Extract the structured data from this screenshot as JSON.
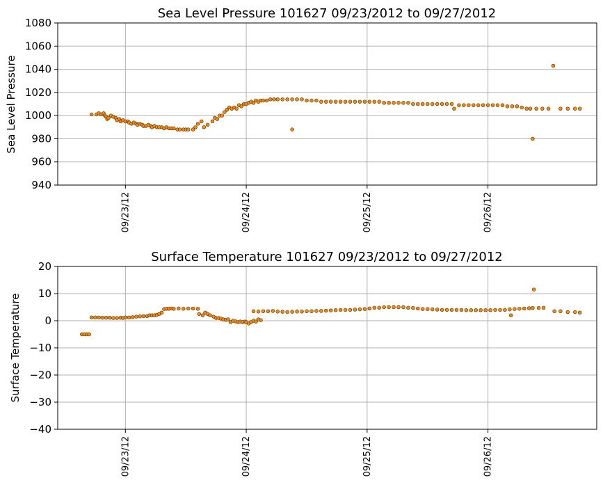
{
  "chart_data": [
    {
      "type": "scatter",
      "title": "Sea Level Pressure 101627  09/23/2012 to 09/27/2012",
      "xlabel": "",
      "ylabel": "Sea Level Pressure",
      "xlim": [
        -0.56,
        3.9
      ],
      "ylim": [
        940,
        1080
      ],
      "yticks": [
        940,
        960,
        980,
        1000,
        1020,
        1040,
        1060,
        1080
      ],
      "xticks": [
        0,
        1,
        2,
        3
      ],
      "xtick_labels": [
        "09/23/12",
        "09/24/12",
        "09/25/12",
        "09/26/12"
      ],
      "grid": true,
      "marker_color": "#ff8c00",
      "series": [
        {
          "name": "Sea Level Pressure",
          "points": [
            [
              -0.28,
              1001
            ],
            [
              -0.24,
              1001
            ],
            [
              -0.22,
              1002
            ],
            [
              -0.2,
              1001
            ],
            [
              -0.18,
              1002
            ],
            [
              -0.17,
              1000
            ],
            [
              -0.16,
              999
            ],
            [
              -0.15,
              997
            ],
            [
              -0.14,
              998
            ],
            [
              -0.12,
              1000
            ],
            [
              -0.1,
              999
            ],
            [
              -0.08,
              998
            ],
            [
              -0.07,
              996
            ],
            [
              -0.05,
              997
            ],
            [
              -0.04,
              995
            ],
            [
              -0.02,
              996
            ],
            [
              0,
              995
            ],
            [
              0.02,
              995
            ],
            [
              0.03,
              994
            ],
            [
              0.05,
              993
            ],
            [
              0.07,
              994
            ],
            [
              0.09,
              993
            ],
            [
              0.1,
              992
            ],
            [
              0.12,
              993
            ],
            [
              0.14,
              992
            ],
            [
              0.15,
              991
            ],
            [
              0.17,
              991
            ],
            [
              0.19,
              992
            ],
            [
              0.21,
              991
            ],
            [
              0.22,
              990
            ],
            [
              0.24,
              991
            ],
            [
              0.26,
              990
            ],
            [
              0.28,
              990
            ],
            [
              0.3,
              990
            ],
            [
              0.32,
              989
            ],
            [
              0.34,
              990
            ],
            [
              0.36,
              989
            ],
            [
              0.38,
              989
            ],
            [
              0.4,
              989
            ],
            [
              0.43,
              988
            ],
            [
              0.45,
              988
            ],
            [
              0.48,
              988
            ],
            [
              0.5,
              988
            ],
            [
              0.52,
              988
            ],
            [
              0.56,
              988
            ],
            [
              0.58,
              990
            ],
            [
              0.6,
              993
            ],
            [
              0.63,
              995
            ],
            [
              0.65,
              990
            ],
            [
              0.68,
              992
            ],
            [
              0.72,
              995
            ],
            [
              0.74,
              998
            ],
            [
              0.76,
              997
            ],
            [
              0.78,
              1000
            ],
            [
              0.8,
              1000
            ],
            [
              0.82,
              1003
            ],
            [
              0.84,
              1005
            ],
            [
              0.86,
              1007
            ],
            [
              0.88,
              1006
            ],
            [
              0.9,
              1007
            ],
            [
              0.92,
              1006
            ],
            [
              0.94,
              1009
            ],
            [
              0.96,
              1008
            ],
            [
              0.98,
              1010
            ],
            [
              1,
              1010
            ],
            [
              1.02,
              1011
            ],
            [
              1.04,
              1012
            ],
            [
              1.06,
              1011
            ],
            [
              1.08,
              1013
            ],
            [
              1.1,
              1012
            ],
            [
              1.12,
              1013
            ],
            [
              1.14,
              1013
            ],
            [
              1.17,
              1013
            ],
            [
              1.2,
              1014
            ],
            [
              1.23,
              1014
            ],
            [
              1.26,
              1014
            ],
            [
              1.3,
              1014
            ],
            [
              1.34,
              1014
            ],
            [
              1.38,
              1014
            ],
            [
              1.38,
              988
            ],
            [
              1.42,
              1014
            ],
            [
              1.46,
              1014
            ],
            [
              1.5,
              1013
            ],
            [
              1.54,
              1013
            ],
            [
              1.58,
              1013
            ],
            [
              1.62,
              1012
            ],
            [
              1.66,
              1012
            ],
            [
              1.7,
              1012
            ],
            [
              1.74,
              1012
            ],
            [
              1.78,
              1012
            ],
            [
              1.82,
              1012
            ],
            [
              1.86,
              1012
            ],
            [
              1.9,
              1012
            ],
            [
              1.94,
              1012
            ],
            [
              1.98,
              1012
            ],
            [
              2.02,
              1012
            ],
            [
              2.06,
              1012
            ],
            [
              2.1,
              1012
            ],
            [
              2.14,
              1011
            ],
            [
              2.18,
              1011
            ],
            [
              2.22,
              1011
            ],
            [
              2.26,
              1011
            ],
            [
              2.3,
              1011
            ],
            [
              2.34,
              1011
            ],
            [
              2.38,
              1010
            ],
            [
              2.42,
              1010
            ],
            [
              2.46,
              1010
            ],
            [
              2.5,
              1010
            ],
            [
              2.54,
              1010
            ],
            [
              2.58,
              1010
            ],
            [
              2.62,
              1010
            ],
            [
              2.66,
              1010
            ],
            [
              2.7,
              1010
            ],
            [
              2.72,
              1006
            ],
            [
              2.76,
              1009
            ],
            [
              2.8,
              1009
            ],
            [
              2.84,
              1009
            ],
            [
              2.88,
              1009
            ],
            [
              2.92,
              1009
            ],
            [
              2.96,
              1009
            ],
            [
              3,
              1009
            ],
            [
              3.04,
              1009
            ],
            [
              3.08,
              1009
            ],
            [
              3.12,
              1009
            ],
            [
              3.16,
              1008
            ],
            [
              3.2,
              1008
            ],
            [
              3.24,
              1008
            ],
            [
              3.28,
              1007
            ],
            [
              3.32,
              1006
            ],
            [
              3.35,
              1006
            ],
            [
              3.37,
              980
            ],
            [
              3.4,
              1006
            ],
            [
              3.45,
              1006
            ],
            [
              3.5,
              1006
            ],
            [
              3.54,
              1043
            ],
            [
              3.6,
              1006
            ],
            [
              3.66,
              1006
            ],
            [
              3.72,
              1006
            ],
            [
              3.76,
              1006
            ]
          ]
        }
      ]
    },
    {
      "type": "scatter",
      "title": "Surface Temperature 101627  09/23/2012 to 09/27/2012",
      "xlabel": "",
      "ylabel": "Surface Temperature",
      "xlim": [
        -0.56,
        3.9
      ],
      "ylim": [
        -40,
        20
      ],
      "yticks": [
        -40,
        -30,
        -20,
        -10,
        0,
        10,
        20
      ],
      "ytick_labels": [
        "−40",
        "−30",
        "−20",
        "−10",
        "0",
        "10",
        "20"
      ],
      "xticks": [
        0,
        1,
        2,
        3
      ],
      "xtick_labels": [
        "09/23/12",
        "09/24/12",
        "09/25/12",
        "09/26/12"
      ],
      "grid": true,
      "marker_color": "#ff8c00",
      "series": [
        {
          "name": "Surface Temperature",
          "points": [
            [
              -0.36,
              -5
            ],
            [
              -0.34,
              -5
            ],
            [
              -0.32,
              -5
            ],
            [
              -0.3,
              -5
            ],
            [
              -0.28,
              1.2
            ],
            [
              -0.25,
              1.2
            ],
            [
              -0.22,
              1.2
            ],
            [
              -0.19,
              1.1
            ],
            [
              -0.16,
              1.1
            ],
            [
              -0.13,
              1.1
            ],
            [
              -0.1,
              1.0
            ],
            [
              -0.07,
              1.0
            ],
            [
              -0.04,
              1.1
            ],
            [
              -0.02,
              1.0
            ],
            [
              0,
              1.2
            ],
            [
              0.03,
              1.2
            ],
            [
              0.06,
              1.3
            ],
            [
              0.09,
              1.5
            ],
            [
              0.12,
              1.6
            ],
            [
              0.15,
              1.7
            ],
            [
              0.18,
              1.7
            ],
            [
              0.2,
              2.0
            ],
            [
              0.22,
              2.0
            ],
            [
              0.24,
              2.0
            ],
            [
              0.26,
              2.2
            ],
            [
              0.28,
              2.5
            ],
            [
              0.3,
              3.0
            ],
            [
              0.32,
              4.3
            ],
            [
              0.34,
              4.4
            ],
            [
              0.36,
              4.4
            ],
            [
              0.38,
              4.5
            ],
            [
              0.4,
              4.4
            ],
            [
              0.44,
              4.5
            ],
            [
              0.48,
              4.4
            ],
            [
              0.52,
              4.5
            ],
            [
              0.56,
              4.5
            ],
            [
              0.6,
              4.4
            ],
            [
              0.61,
              2.5
            ],
            [
              0.64,
              2.0
            ],
            [
              0.66,
              3.0
            ],
            [
              0.68,
              2.5
            ],
            [
              0.7,
              2.0
            ],
            [
              0.73,
              1.5
            ],
            [
              0.75,
              1.0
            ],
            [
              0.77,
              1.0
            ],
            [
              0.79,
              0.8
            ],
            [
              0.81,
              0.5
            ],
            [
              0.83,
              0.3
            ],
            [
              0.85,
              0.5
            ],
            [
              0.87,
              -0.5
            ],
            [
              0.89,
              0.0
            ],
            [
              0.91,
              -0.2
            ],
            [
              0.93,
              -0.5
            ],
            [
              0.95,
              -0.3
            ],
            [
              0.97,
              -0.5
            ],
            [
              0.99,
              -0.3
            ],
            [
              1.0,
              -0.5
            ],
            [
              1.02,
              -1.0
            ],
            [
              1.04,
              -0.5
            ],
            [
              1.06,
              0.0
            ],
            [
              1.08,
              -0.3
            ],
            [
              1.1,
              0.5
            ],
            [
              1.12,
              0.2
            ],
            [
              1.06,
              3.5
            ],
            [
              1.1,
              3.4
            ],
            [
              1.14,
              3.5
            ],
            [
              1.18,
              3.5
            ],
            [
              1.22,
              3.6
            ],
            [
              1.26,
              3.4
            ],
            [
              1.3,
              3.3
            ],
            [
              1.34,
              3.2
            ],
            [
              1.38,
              3.3
            ],
            [
              1.42,
              3.4
            ],
            [
              1.46,
              3.4
            ],
            [
              1.5,
              3.5
            ],
            [
              1.54,
              3.5
            ],
            [
              1.58,
              3.6
            ],
            [
              1.62,
              3.6
            ],
            [
              1.66,
              3.7
            ],
            [
              1.7,
              3.8
            ],
            [
              1.74,
              3.9
            ],
            [
              1.78,
              4.0
            ],
            [
              1.82,
              4.0
            ],
            [
              1.86,
              4.0
            ],
            [
              1.9,
              4.1
            ],
            [
              1.94,
              4.2
            ],
            [
              1.98,
              4.3
            ],
            [
              2.02,
              4.5
            ],
            [
              2.06,
              4.8
            ],
            [
              2.1,
              4.8
            ],
            [
              2.14,
              5.0
            ],
            [
              2.18,
              5.0
            ],
            [
              2.22,
              5.0
            ],
            [
              2.26,
              5.0
            ],
            [
              2.3,
              5.0
            ],
            [
              2.34,
              4.8
            ],
            [
              2.38,
              4.7
            ],
            [
              2.42,
              4.5
            ],
            [
              2.46,
              4.3
            ],
            [
              2.5,
              4.3
            ],
            [
              2.54,
              4.2
            ],
            [
              2.58,
              4.1
            ],
            [
              2.62,
              4.0
            ],
            [
              2.66,
              4.0
            ],
            [
              2.7,
              4.0
            ],
            [
              2.74,
              4.0
            ],
            [
              2.78,
              4.0
            ],
            [
              2.82,
              3.9
            ],
            [
              2.86,
              3.9
            ],
            [
              2.9,
              3.9
            ],
            [
              2.94,
              3.9
            ],
            [
              2.98,
              3.9
            ],
            [
              3.02,
              3.9
            ],
            [
              3.06,
              4.0
            ],
            [
              3.1,
              4.0
            ],
            [
              3.14,
              4.0
            ],
            [
              3.18,
              4.2
            ],
            [
              3.22,
              4.3
            ],
            [
              3.26,
              4.4
            ],
            [
              3.3,
              4.5
            ],
            [
              3.34,
              4.6
            ],
            [
              3.37,
              4.7
            ],
            [
              3.38,
              11.5
            ],
            [
              3.19,
              2.0
            ],
            [
              3.42,
              4.7
            ],
            [
              3.46,
              4.8
            ],
            [
              3.55,
              3.5
            ],
            [
              3.6,
              3.5
            ],
            [
              3.66,
              3.2
            ],
            [
              3.72,
              3.2
            ],
            [
              3.76,
              3.0
            ]
          ]
        }
      ]
    }
  ]
}
